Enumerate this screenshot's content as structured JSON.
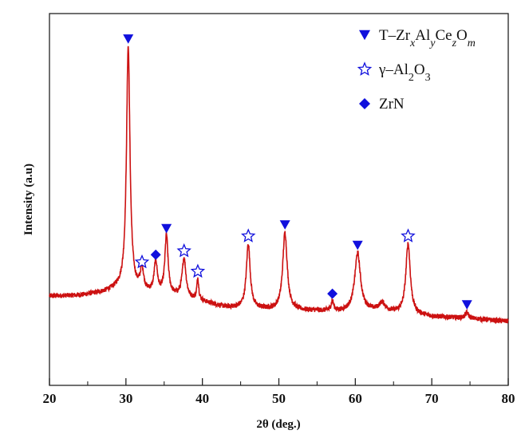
{
  "chart_data": {
    "type": "line",
    "title": "",
    "xlabel": "2θ (deg.)",
    "ylabel": "Intensity (a.u)",
    "xlim": [
      20,
      80
    ],
    "ylim": [
      0,
      100
    ],
    "xticks": [
      20,
      30,
      40,
      50,
      60,
      70,
      80
    ],
    "xminor": [
      25,
      35,
      45,
      55,
      65,
      75
    ],
    "yticks_shown": false,
    "grid": false,
    "legend_position": "top-right",
    "line_color": "#cc1111",
    "marker_color": "#1010dd",
    "baseline": [
      [
        20,
        24
      ],
      [
        24,
        24.2
      ],
      [
        27,
        25
      ],
      [
        29,
        26
      ],
      [
        31.5,
        25
      ],
      [
        36,
        24
      ],
      [
        40,
        22.5
      ],
      [
        43,
        21
      ],
      [
        49,
        20.3
      ],
      [
        55,
        20
      ],
      [
        58,
        19.8
      ],
      [
        62,
        20
      ],
      [
        65,
        19.5
      ],
      [
        70,
        18.5
      ],
      [
        75,
        18
      ],
      [
        80,
        17.2
      ]
    ],
    "peaks": [
      {
        "two_theta": 30.3,
        "intensity": 91,
        "fwhm": 0.55,
        "phase": "T-ZrxAlyCezOm"
      },
      {
        "two_theta": 32.1,
        "intensity": 31,
        "fwhm": 0.5,
        "phase": "γ-Al2O3"
      },
      {
        "two_theta": 33.9,
        "intensity": 33,
        "fwhm": 0.5,
        "phase": "ZrN"
      },
      {
        "two_theta": 35.3,
        "intensity": 40,
        "fwhm": 0.5,
        "phase": "T-ZrxAlyCezOm"
      },
      {
        "two_theta": 37.6,
        "intensity": 34,
        "fwhm": 0.6,
        "phase": "γ-Al2O3"
      },
      {
        "two_theta": 39.4,
        "intensity": 28.5,
        "fwhm": 0.3,
        "phase": "γ-Al2O3"
      },
      {
        "two_theta": 46.0,
        "intensity": 38,
        "fwhm": 0.6,
        "phase": "γ-Al2O3"
      },
      {
        "two_theta": 50.8,
        "intensity": 41,
        "fwhm": 0.7,
        "phase": "T-ZrxAlyCezOm"
      },
      {
        "two_theta": 57.0,
        "intensity": 22.5,
        "fwhm": 0.4,
        "phase": "ZrN"
      },
      {
        "two_theta": 60.3,
        "intensity": 35.5,
        "fwhm": 0.9,
        "phase": "T-ZrxAlyCezOm"
      },
      {
        "two_theta": 63.5,
        "intensity": 22,
        "fwhm": 1.0,
        "phase": ""
      },
      {
        "two_theta": 66.9,
        "intensity": 38,
        "fwhm": 0.7,
        "phase": "γ-Al2O3"
      },
      {
        "two_theta": 74.6,
        "intensity": 19.5,
        "fwhm": 0.5,
        "phase": "T-ZrxAlyCezOm"
      }
    ],
    "legend": [
      {
        "marker": "triangle-down",
        "phase": "T-ZrxAlyCezOm",
        "parts": [
          [
            "T–Zr",
            ""
          ],
          [
            "x",
            "sub"
          ],
          [
            "Al",
            ""
          ],
          [
            "y",
            "sub"
          ],
          [
            "Ce",
            ""
          ],
          [
            "z",
            "sub"
          ],
          [
            "O",
            ""
          ],
          [
            "m",
            "sub"
          ]
        ]
      },
      {
        "marker": "star",
        "phase": "γ-Al2O3",
        "parts": [
          [
            "γ–Al",
            ""
          ],
          [
            "2",
            "sub"
          ],
          [
            "O",
            ""
          ],
          [
            "3",
            "sub"
          ]
        ]
      },
      {
        "marker": "diamond",
        "phase": "ZrN",
        "parts": [
          [
            "ZrN",
            ""
          ]
        ]
      }
    ]
  }
}
